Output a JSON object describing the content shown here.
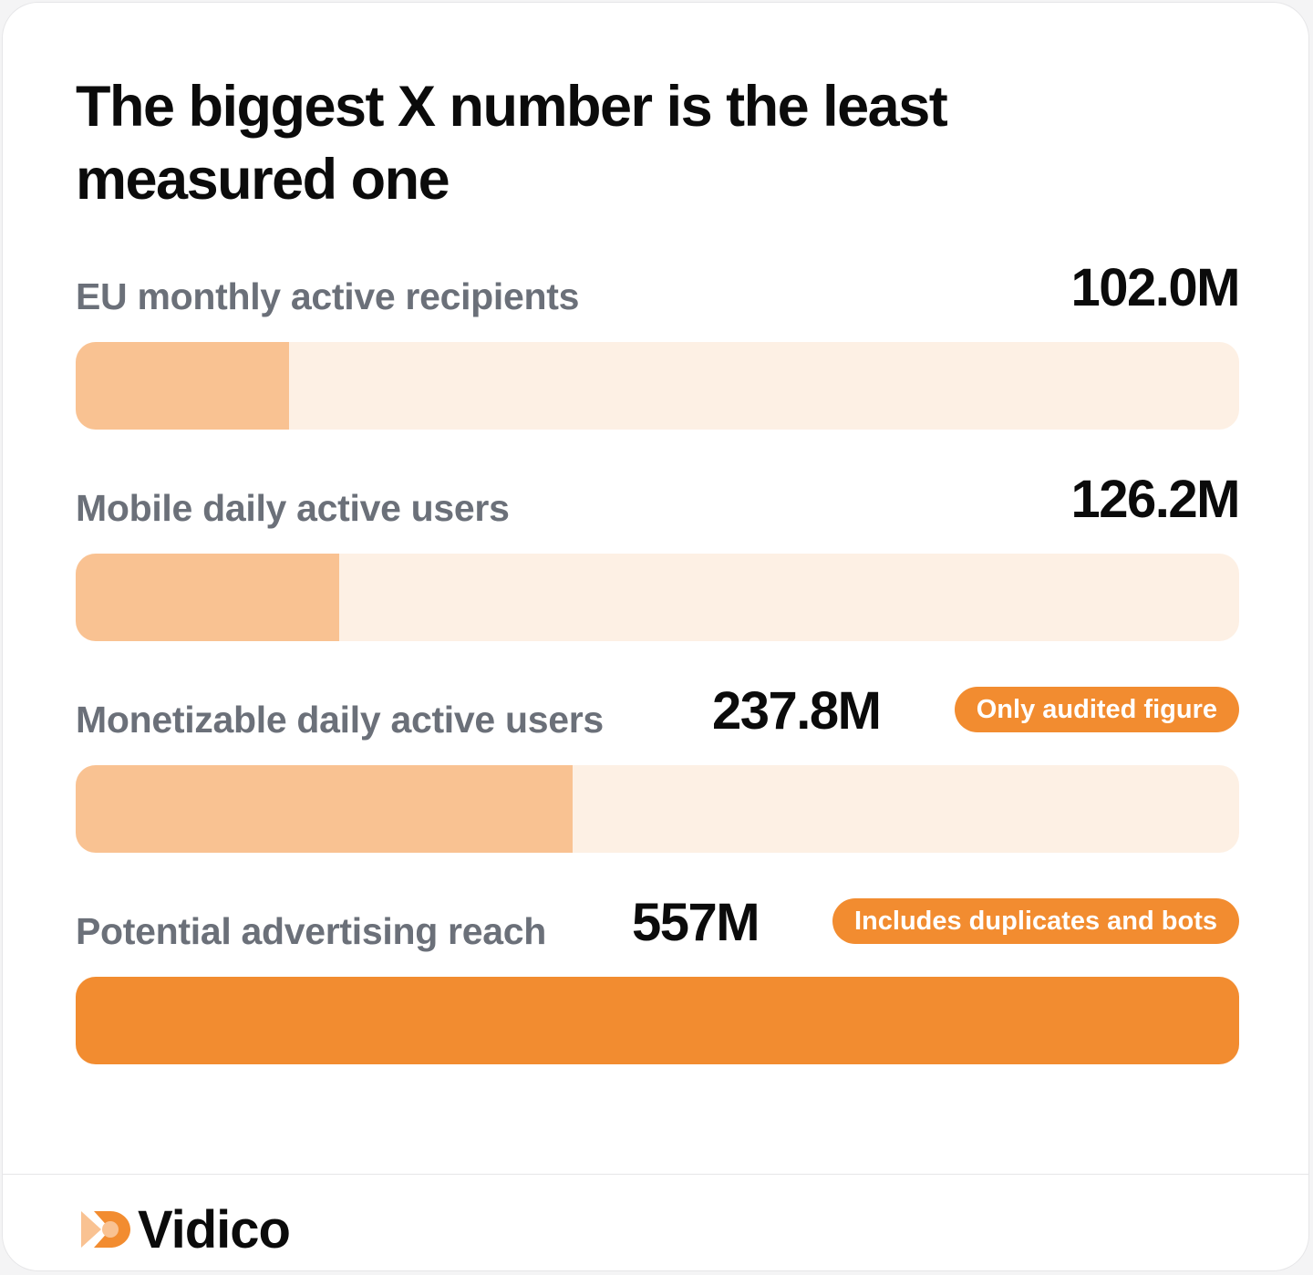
{
  "title": "The biggest X number is the least measured one",
  "chart_data": {
    "type": "bar",
    "orientation": "horizontal",
    "categories": [
      "EU monthly active recipients",
      "Mobile daily active users",
      "Monetizable daily active users",
      "Potential advertising reach"
    ],
    "values": [
      102.0,
      126.2,
      237.8,
      557
    ],
    "value_labels": [
      "102.0M",
      "126.2M",
      "237.8M",
      "557M"
    ],
    "unit": "M",
    "xlim": [
      0,
      557
    ],
    "annotations": [
      "",
      "",
      "Only audited figure",
      "Includes duplicates and bots"
    ],
    "grid": false,
    "legend": "none"
  },
  "colors": {
    "track": "#fdf0e4",
    "bar": "#f9c292",
    "bar_highlight": "#f28c30",
    "badge": "#f28c30",
    "label": "#6b7079",
    "value": "#0b0b0b"
  },
  "footer": {
    "logo_icon": "vidico-logo-icon",
    "brand": "Vidico"
  }
}
